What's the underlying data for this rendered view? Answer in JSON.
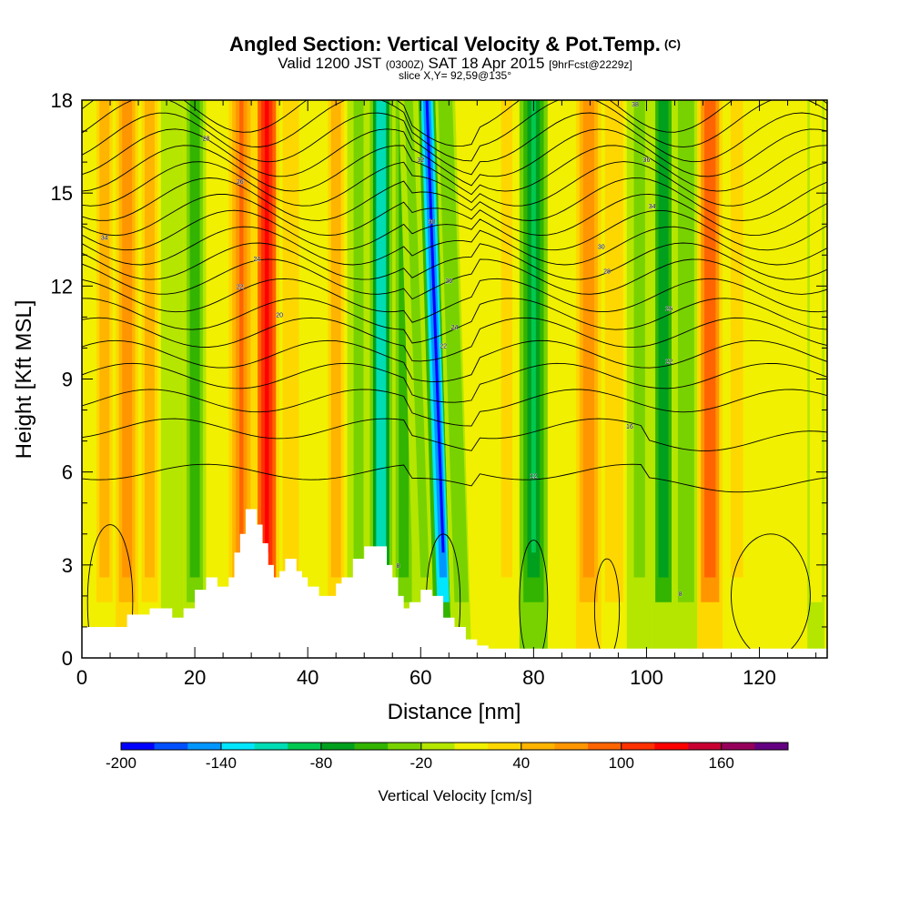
{
  "header": {
    "title": "Angled Section: Vertical Velocity & Pot.Temp.",
    "title_mark": "(C)",
    "valid_prefix": "Valid 1200 JST",
    "valid_utc": "(0300Z)",
    "valid_date": "SAT 18 Apr 2015",
    "forecast_tag": "[9hrFcst@2229z]",
    "slice": "slice X,Y= 92,59@135°"
  },
  "chart_data": {
    "type": "heatmap",
    "title": "Angled Section: Vertical Velocity & Pot.Temp.",
    "xlabel": "Distance [nm]",
    "ylabel": "Height [Kft MSL]",
    "xlim": [
      0,
      132
    ],
    "ylim": [
      0,
      18
    ],
    "x_ticks": [
      0,
      20,
      40,
      60,
      80,
      100,
      120
    ],
    "y_ticks": [
      0,
      3,
      6,
      9,
      12,
      15,
      18
    ],
    "colorbar": {
      "label": "Vertical Velocity [cm/s]",
      "tick_values": [
        -200,
        -140,
        -80,
        -20,
        40,
        100,
        160
      ],
      "bounds": [
        -200,
        -180,
        -160,
        -140,
        -120,
        -100,
        -80,
        -60,
        -40,
        -20,
        0,
        20,
        40,
        60,
        80,
        100,
        120,
        140,
        160,
        180
      ],
      "colors": [
        "#0000ff",
        "#0050ff",
        "#0096ff",
        "#00e6ff",
        "#00dcb4",
        "#00c850",
        "#00a01e",
        "#32b400",
        "#78d200",
        "#b4e600",
        "#f0f000",
        "#ffd700",
        "#ffb400",
        "#ff9600",
        "#ff6400",
        "#ff3200",
        "#ff0000",
        "#c80032",
        "#96005a",
        "#640082"
      ]
    },
    "velocity_columns": [
      {
        "x": 4,
        "value": 60
      },
      {
        "x": 8,
        "value": 80
      },
      {
        "x": 12,
        "value": 50
      },
      {
        "x": 16,
        "value": -20
      },
      {
        "x": 20,
        "value": -50
      },
      {
        "x": 24,
        "value": 20
      },
      {
        "x": 28,
        "value": 90
      },
      {
        "x": 33,
        "value": 130
      },
      {
        "x": 37,
        "value": 40
      },
      {
        "x": 41,
        "value": 10
      },
      {
        "x": 45,
        "value": 60
      },
      {
        "x": 49,
        "value": -30
      },
      {
        "x": 53,
        "value": -120
      },
      {
        "x": 57,
        "value": -60
      },
      {
        "x": 61,
        "value": -30
      },
      {
        "x": 64,
        "value": -190
      },
      {
        "x": 67,
        "value": -40
      },
      {
        "x": 71,
        "value": 20
      },
      {
        "x": 75,
        "value": 30
      },
      {
        "x": 80,
        "value": -90
      },
      {
        "x": 85,
        "value": 10
      },
      {
        "x": 90,
        "value": 80
      },
      {
        "x": 94,
        "value": 40
      },
      {
        "x": 99,
        "value": -30
      },
      {
        "x": 103,
        "value": -80
      },
      {
        "x": 107,
        "value": -40
      },
      {
        "x": 111,
        "value": 100
      },
      {
        "x": 116,
        "value": 30
      },
      {
        "x": 121,
        "value": 10
      },
      {
        "x": 126,
        "value": 10
      },
      {
        "x": 131,
        "value": 0
      }
    ],
    "terrain": {
      "x": [
        0,
        4,
        8,
        12,
        14,
        16,
        18,
        20,
        22,
        24,
        26,
        27,
        28,
        29,
        30,
        31,
        32,
        33,
        34,
        35,
        36,
        37,
        38,
        39,
        40,
        42,
        44,
        45,
        46,
        48,
        50,
        52,
        54,
        55,
        56,
        57,
        58,
        60,
        62,
        64,
        66,
        68,
        70,
        72,
        74,
        132
      ],
      "height": [
        1.0,
        1.0,
        1.4,
        1.6,
        1.6,
        1.3,
        1.6,
        2.2,
        2.6,
        2.3,
        2.6,
        3.4,
        4.0,
        4.8,
        4.8,
        4.3,
        3.7,
        3.0,
        2.6,
        2.8,
        3.2,
        3.2,
        2.8,
        2.6,
        2.3,
        2.0,
        2.0,
        2.4,
        2.6,
        3.2,
        3.6,
        3.6,
        3.0,
        2.6,
        2.0,
        1.6,
        1.8,
        2.2,
        2.0,
        1.3,
        1.0,
        0.6,
        0.4,
        0.3,
        0.3,
        0.3
      ]
    },
    "isentropes": {
      "levels_kft": [
        6.0,
        7.4,
        8.3,
        9.1,
        9.8,
        10.5,
        11.1,
        11.7,
        12.3,
        12.8,
        13.3,
        13.8,
        14.3,
        14.8,
        15.3,
        15.8,
        16.3,
        16.8,
        17.3,
        17.8
      ],
      "contour_labels": [
        {
          "x": 4,
          "y": 13.5,
          "text": "34"
        },
        {
          "x": 28,
          "y": 15.3,
          "text": "26"
        },
        {
          "x": 31,
          "y": 12.8,
          "text": "24"
        },
        {
          "x": 35,
          "y": 11.0,
          "text": "20"
        },
        {
          "x": 28,
          "y": 11.9,
          "text": "22"
        },
        {
          "x": 22,
          "y": 16.7,
          "text": "28"
        },
        {
          "x": 60,
          "y": 16.0,
          "text": "32"
        },
        {
          "x": 62,
          "y": 14.0,
          "text": "30"
        },
        {
          "x": 65,
          "y": 12.1,
          "text": "26"
        },
        {
          "x": 66,
          "y": 10.6,
          "text": "24"
        },
        {
          "x": 64,
          "y": 10.0,
          "text": "22"
        },
        {
          "x": 100,
          "y": 16.0,
          "text": "36"
        },
        {
          "x": 101,
          "y": 14.5,
          "text": "34"
        },
        {
          "x": 92,
          "y": 13.2,
          "text": "30"
        },
        {
          "x": 93,
          "y": 12.4,
          "text": "28"
        },
        {
          "x": 104,
          "y": 11.2,
          "text": "26"
        },
        {
          "x": 104,
          "y": 9.5,
          "text": "22"
        },
        {
          "x": 97,
          "y": 7.4,
          "text": "16"
        },
        {
          "x": 80,
          "y": 5.8,
          "text": "12"
        },
        {
          "x": 56,
          "y": 2.9,
          "text": "8"
        },
        {
          "x": 106,
          "y": 2.0,
          "text": "8"
        },
        {
          "x": 98,
          "y": 17.8,
          "text": "38"
        }
      ]
    }
  }
}
